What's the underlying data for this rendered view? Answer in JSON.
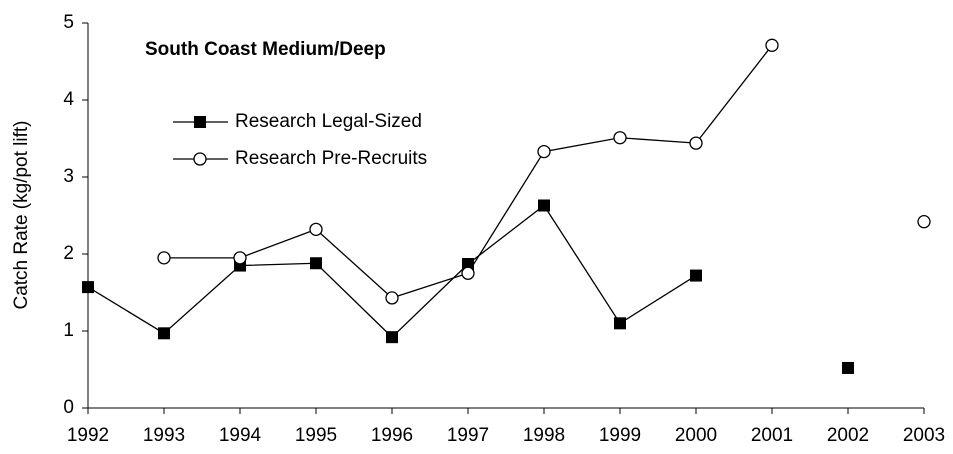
{
  "chart_data": {
    "type": "line",
    "title": "South Coast Medium/Deep",
    "y_label": "Catch Rate (kg/pot lift)",
    "x": [
      1992,
      1993,
      1994,
      1995,
      1996,
      1997,
      1998,
      1999,
      2000,
      2001,
      2002,
      2003
    ],
    "series": [
      {
        "name": "Research Legal-Sized",
        "color": "#000000",
        "marker": "square",
        "values": [
          1.57,
          0.97,
          1.85,
          1.88,
          0.92,
          1.87,
          2.63,
          1.1,
          1.72,
          null,
          0.52,
          null
        ]
      },
      {
        "name": "Research Pre-Recruits",
        "color": "#000000",
        "marker": "circle",
        "values": [
          null,
          1.95,
          1.95,
          2.32,
          1.43,
          1.75,
          3.33,
          3.51,
          3.44,
          4.71,
          null,
          2.42
        ]
      }
    ],
    "xlim": [
      1992,
      2003
    ],
    "xticks": [
      1992,
      1993,
      1994,
      1995,
      1996,
      1997,
      1998,
      1999,
      2000,
      2001,
      2002,
      2003
    ],
    "ylim": [
      0,
      5
    ],
    "yticks": [
      0,
      1,
      2,
      3,
      4,
      5
    ],
    "grid": false,
    "legend": "upper left"
  }
}
